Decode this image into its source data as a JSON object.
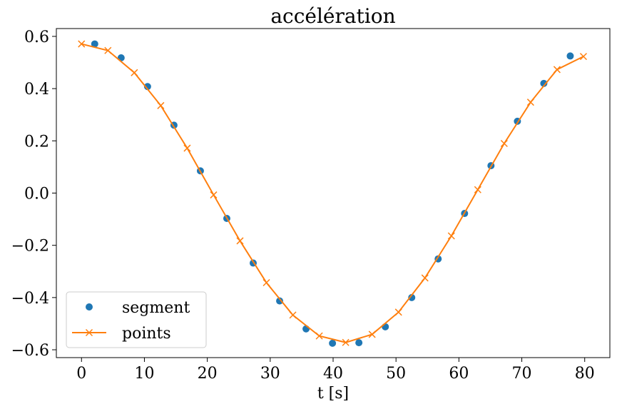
{
  "chart_data": {
    "type": "line",
    "title": "accélération",
    "xlabel": "t [s]",
    "ylabel": "",
    "xlim": [
      -4,
      84
    ],
    "ylim": [
      -0.63,
      0.63
    ],
    "xticks": [
      0,
      10,
      20,
      30,
      40,
      50,
      60,
      70,
      80
    ],
    "xtick_labels": [
      "0",
      "10",
      "20",
      "30",
      "40",
      "50",
      "60",
      "70",
      "80"
    ],
    "yticks": [
      0.6,
      0.4,
      0.2,
      0.0,
      -0.2,
      -0.4,
      -0.6
    ],
    "ytick_labels": [
      "0.6",
      "0.4",
      "0.2",
      "0.0",
      "−0.2",
      "−0.4",
      "−0.6"
    ],
    "grid": false,
    "legend_position": "lower-left",
    "series": [
      {
        "name": "segment",
        "style": "markers",
        "marker": "circle",
        "color": "#1f77b4",
        "x": [
          2.1,
          6.3,
          10.5,
          14.7,
          18.9,
          23.1,
          27.3,
          31.5,
          35.7,
          39.9,
          44.1,
          48.3,
          52.5,
          56.7,
          60.9,
          65.1,
          69.3,
          73.5,
          77.7
        ],
        "y": [
          0.571,
          0.518,
          0.408,
          0.26,
          0.085,
          -0.097,
          -0.268,
          -0.413,
          -0.52,
          -0.575,
          -0.573,
          -0.512,
          -0.4,
          -0.252,
          -0.078,
          0.105,
          0.275,
          0.42,
          0.525
        ]
      },
      {
        "name": "points",
        "style": "line-markers",
        "marker": "x",
        "color": "#ff7f0e",
        "x": [
          0.0,
          4.2,
          8.4,
          12.6,
          16.8,
          21.0,
          25.2,
          29.4,
          33.6,
          37.8,
          42.0,
          46.2,
          50.4,
          54.6,
          58.8,
          63.0,
          67.2,
          71.4,
          75.6,
          79.8
        ],
        "y": [
          0.571,
          0.546,
          0.461,
          0.335,
          0.172,
          -0.007,
          -0.183,
          -0.343,
          -0.467,
          -0.547,
          -0.572,
          -0.541,
          -0.456,
          -0.325,
          -0.164,
          0.013,
          0.19,
          0.348,
          0.473,
          0.523
        ]
      }
    ]
  }
}
